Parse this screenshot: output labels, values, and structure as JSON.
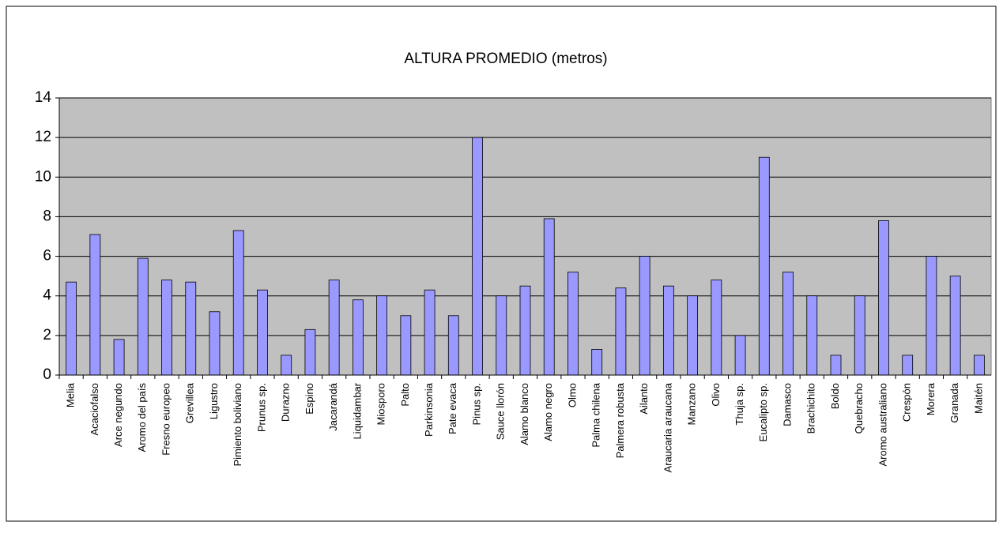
{
  "chart_data": {
    "type": "bar",
    "title": "ALTURA PROMEDIO (metros)",
    "categories": [
      "Melia",
      "Acaciofalso",
      "Arce negundo",
      "Aromo del país",
      "Fresno europeo",
      "Grevillea",
      "Ligustro",
      "Pimiento boliviano",
      "Prunus sp.",
      "Durazno",
      "Espino",
      "Jacarandá",
      "Liquidambar",
      "Miosporo",
      "Palto",
      "Parkinsonia",
      "Pate evaca",
      "Pinus sp.",
      "Sauce llorón",
      "Alamo blanco",
      "Alamo negro",
      "Olmo",
      "Palma chilena",
      "Palmera robusta",
      "Ailanto",
      "Araucaria araucana",
      "Manzano",
      "Olivo",
      "Thuja sp.",
      "Eucalipto sp.",
      "Damasco",
      "Brachichito",
      "Boldo",
      "Quebracho",
      "Aromo australiano",
      "Crespón",
      "Morera",
      "Granada",
      "Maitén"
    ],
    "values": [
      4.7,
      7.1,
      1.8,
      5.9,
      4.8,
      4.7,
      3.2,
      7.3,
      4.3,
      1,
      2.3,
      4.8,
      3.8,
      4,
      3,
      4.3,
      3,
      12,
      4,
      4.5,
      7.9,
      5.2,
      1.3,
      4.4,
      6,
      4.5,
      4,
      4.8,
      2,
      11,
      5.2,
      4,
      1,
      4,
      7.8,
      1,
      6,
      5,
      1
    ],
    "color": "#9999ff",
    "ylim": [
      0,
      14
    ],
    "yticks": [
      0,
      2,
      4,
      6,
      8,
      10,
      12,
      14
    ],
    "grid": true
  }
}
